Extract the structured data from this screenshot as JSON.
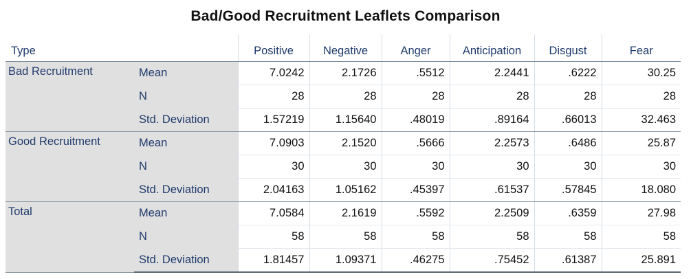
{
  "title": "Bad/Good Recruitment Leaflets Comparison",
  "header": {
    "type_label": "Type",
    "columns": [
      "Positive",
      "Negative",
      "Anger",
      "Anticipation",
      "Disgust",
      "Fear"
    ]
  },
  "groups": [
    {
      "label": "Bad Recruitment",
      "rows": [
        {
          "stat": "Mean",
          "values": [
            "7.0242",
            "2.1726",
            ".5512",
            "2.2441",
            ".6222",
            "30.25"
          ]
        },
        {
          "stat": "N",
          "values": [
            "28",
            "28",
            "28",
            "28",
            "28",
            "28"
          ]
        },
        {
          "stat": "Std. Deviation",
          "values": [
            "1.57219",
            "1.15640",
            ".48019",
            ".89164",
            ".66013",
            "32.463"
          ]
        }
      ]
    },
    {
      "label": "Good Recruitment",
      "rows": [
        {
          "stat": "Mean",
          "values": [
            "7.0903",
            "2.1520",
            ".5666",
            "2.2573",
            ".6486",
            "25.87"
          ]
        },
        {
          "stat": "N",
          "values": [
            "30",
            "30",
            "30",
            "30",
            "30",
            "30"
          ]
        },
        {
          "stat": "Std. Deviation",
          "values": [
            "2.04163",
            "1.05162",
            ".45397",
            ".61537",
            ".57845",
            "18.080"
          ]
        }
      ]
    },
    {
      "label": "Total",
      "rows": [
        {
          "stat": "Mean",
          "values": [
            "7.0584",
            "2.1619",
            ".5592",
            "2.2509",
            ".6359",
            "27.98"
          ]
        },
        {
          "stat": "N",
          "values": [
            "58",
            "58",
            "58",
            "58",
            "58",
            "58"
          ]
        },
        {
          "stat": "Std. Deviation",
          "values": [
            "1.81457",
            "1.09371",
            ".46275",
            ".75452",
            ".61387",
            "25.891"
          ]
        }
      ]
    }
  ],
  "colors": {
    "label_text": "#1f3a6b",
    "label_background": "#e0e0e0",
    "value_text": "#111111"
  }
}
